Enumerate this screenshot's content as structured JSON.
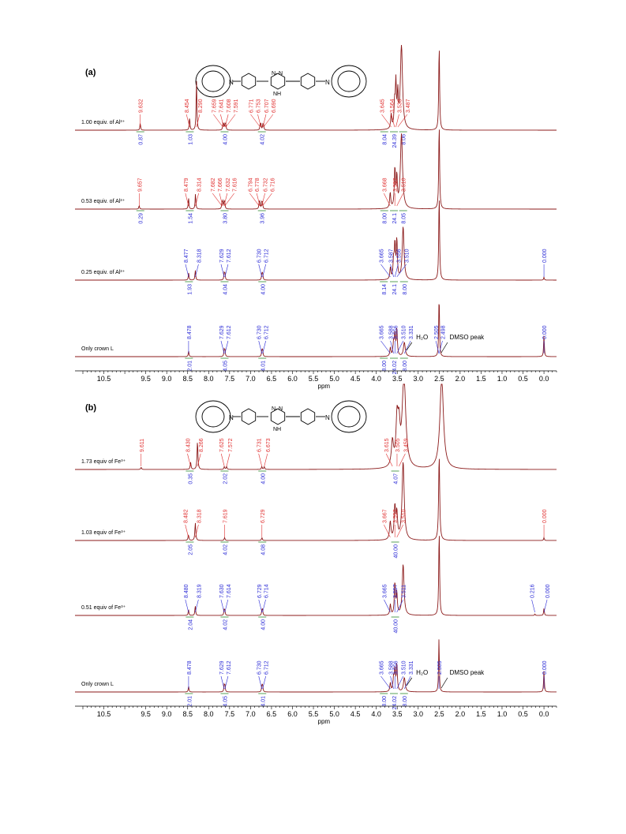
{
  "colors": {
    "spectrum": "#8B1A1A",
    "label_red": "#E03030",
    "label_blue": "#2B2BD6",
    "integral_green": "#2E8B2E",
    "axis": "#000000"
  },
  "annotations": {
    "h2o": "H₂O",
    "dmso": "DMSO peak"
  },
  "chart_data": [
    {
      "type": "line",
      "panel_label": "(a)",
      "xlabel": "ppm",
      "x_reversed": true,
      "xlim": [
        11.0,
        -0.3
      ],
      "xticks": [
        "10.5",
        "9.5",
        "9.0",
        "8.5",
        "8.0",
        "7.5",
        "7.0",
        "6.5",
        "6.0",
        "5.5",
        "5.0",
        "4.5",
        "4.0",
        "3.5",
        "3.0",
        "2.5",
        "2.0",
        "1.5",
        "1.0",
        "0.5",
        "0.0"
      ],
      "structure_labels": {
        "nitrogen": "N",
        "azo": "N–N",
        "nh": "NH"
      },
      "series": [
        {
          "name": "1.00 equiv. of Al³⁺",
          "peaks": [
            {
              "ppm": 9.632,
              "h": 0.1,
              "w": 0.01
            },
            {
              "ppm": 8.454,
              "h": 0.18,
              "w": 0.01
            },
            {
              "ppm": 8.29,
              "h": 0.72,
              "w": 0.01
            },
            {
              "ppm": 7.659,
              "h": 0.08,
              "w": 0.01
            },
            {
              "ppm": 7.641,
              "h": 0.07,
              "w": 0.01
            },
            {
              "ppm": 7.608,
              "h": 0.08,
              "w": 0.01
            },
            {
              "ppm": 7.591,
              "h": 0.07,
              "w": 0.01
            },
            {
              "ppm": 6.771,
              "h": 0.07,
              "w": 0.01
            },
            {
              "ppm": 6.753,
              "h": 0.08,
              "w": 0.01
            },
            {
              "ppm": 6.707,
              "h": 0.07,
              "w": 0.01
            },
            {
              "ppm": 6.69,
              "h": 0.07,
              "w": 0.01
            },
            {
              "ppm": 3.645,
              "h": 0.2,
              "w": 0.015
            },
            {
              "ppm": 3.564,
              "h": 0.32,
              "w": 0.015
            },
            {
              "ppm": 3.533,
              "h": 0.62,
              "w": 0.015
            },
            {
              "ppm": 3.487,
              "h": 0.45,
              "w": 0.015
            },
            {
              "ppm": 3.4,
              "h": 1.2,
              "w": 0.03
            },
            {
              "ppm": 2.5,
              "h": 1.2,
              "w": 0.012
            }
          ],
          "labels_red": [
            "9.632",
            "8.454",
            "8.290",
            "7.659",
            "7.641",
            "7.608",
            "7.591",
            "6.771",
            "6.753",
            "6.707",
            "6.690",
            "3.645",
            "3.564",
            "3.533",
            "3.487"
          ],
          "labels_blue": [],
          "integrals": [
            "0.87",
            "1.03",
            "4.00",
            "4.02",
            "8.04",
            "24.39",
            "8.06"
          ]
        },
        {
          "name": "0.53 equiv. of Al³⁺",
          "peaks": [
            {
              "ppm": 9.657,
              "h": 0.05,
              "w": 0.01
            },
            {
              "ppm": 8.479,
              "h": 0.16,
              "w": 0.01
            },
            {
              "ppm": 8.314,
              "h": 0.22,
              "w": 0.01
            },
            {
              "ppm": 7.682,
              "h": 0.08,
              "w": 0.01
            },
            {
              "ppm": 7.666,
              "h": 0.09,
              "w": 0.01
            },
            {
              "ppm": 7.632,
              "h": 0.09,
              "w": 0.01
            },
            {
              "ppm": 7.616,
              "h": 0.08,
              "w": 0.01
            },
            {
              "ppm": 6.794,
              "h": 0.08,
              "w": 0.01
            },
            {
              "ppm": 6.778,
              "h": 0.09,
              "w": 0.01
            },
            {
              "ppm": 6.732,
              "h": 0.09,
              "w": 0.01
            },
            {
              "ppm": 6.716,
              "h": 0.08,
              "w": 0.01
            },
            {
              "ppm": 3.668,
              "h": 0.22,
              "w": 0.015
            },
            {
              "ppm": 3.557,
              "h": 0.55,
              "w": 0.015
            },
            {
              "ppm": 3.51,
              "h": 0.42,
              "w": 0.015
            },
            {
              "ppm": 3.4,
              "h": 1.05,
              "w": 0.03
            },
            {
              "ppm": 2.5,
              "h": 1.2,
              "w": 0.012
            }
          ],
          "labels_red": [
            "9.657",
            "8.479",
            "8.314",
            "7.682",
            "7.666",
            "7.632",
            "7.616",
            "6.794",
            "6.778",
            "6.732",
            "6.716",
            "3.668",
            "3.557",
            "3.510"
          ],
          "labels_blue": [],
          "integrals": [
            "0.29",
            "1.54",
            "3.80",
            "3.96",
            "8.00",
            "24.1",
            "8.05"
          ]
        },
        {
          "name": "0.25 equiv. of Al³⁺",
          "peaks": [
            {
              "ppm": 8.477,
              "h": 0.1,
              "w": 0.01
            },
            {
              "ppm": 8.318,
              "h": 0.14,
              "w": 0.01
            },
            {
              "ppm": 7.629,
              "h": 0.09,
              "w": 0.01
            },
            {
              "ppm": 7.612,
              "h": 0.09,
              "w": 0.01
            },
            {
              "ppm": 6.73,
              "h": 0.09,
              "w": 0.01
            },
            {
              "ppm": 6.712,
              "h": 0.09,
              "w": 0.01
            },
            {
              "ppm": 3.665,
              "h": 0.16,
              "w": 0.015
            },
            {
              "ppm": 3.587,
              "h": 0.26,
              "w": 0.015
            },
            {
              "ppm": 3.556,
              "h": 0.48,
              "w": 0.015
            },
            {
              "ppm": 3.51,
              "h": 0.55,
              "w": 0.015
            },
            {
              "ppm": 3.36,
              "h": 0.75,
              "w": 0.025
            },
            {
              "ppm": 2.5,
              "h": 1.2,
              "w": 0.012
            },
            {
              "ppm": 0.0,
              "h": 0.04,
              "w": 0.01
            }
          ],
          "labels_red": [],
          "labels_blue": [
            "8.477",
            "8.318",
            "7.629",
            "7.612",
            "6.730",
            "6.712",
            "3.665",
            "3.587",
            "3.556",
            "3.510",
            "0.000"
          ],
          "integrals": [
            "1.93",
            "4.04",
            "4.00",
            "8.14",
            "24.1",
            "8.00"
          ]
        },
        {
          "name": "Only crown L",
          "peaks": [
            {
              "ppm": 8.478,
              "h": 0.08,
              "w": 0.01
            },
            {
              "ppm": 7.629,
              "h": 0.09,
              "w": 0.01
            },
            {
              "ppm": 7.612,
              "h": 0.09,
              "w": 0.01
            },
            {
              "ppm": 6.73,
              "h": 0.09,
              "w": 0.01
            },
            {
              "ppm": 6.712,
              "h": 0.09,
              "w": 0.01
            },
            {
              "ppm": 3.665,
              "h": 0.12,
              "w": 0.015
            },
            {
              "ppm": 3.588,
              "h": 0.18,
              "w": 0.015
            },
            {
              "ppm": 3.556,
              "h": 0.3,
              "w": 0.015
            },
            {
              "ppm": 3.51,
              "h": 0.38,
              "w": 0.015
            },
            {
              "ppm": 3.331,
              "h": 0.2,
              "w": 0.025
            },
            {
              "ppm": 2.505,
              "h": 0.48,
              "w": 0.01
            },
            {
              "ppm": 2.498,
              "h": 0.44,
              "w": 0.01
            },
            {
              "ppm": 0.0,
              "h": 0.3,
              "w": 0.01
            }
          ],
          "labels_red": [],
          "labels_blue": [
            "8.478",
            "7.629",
            "7.612",
            "6.730",
            "6.712",
            "3.665",
            "3.588",
            "3.556",
            "3.510",
            "3.331",
            "2.505",
            "2.498",
            "0.000"
          ],
          "integrals": [
            "2.01",
            "4.05",
            "4.01",
            "8.00",
            "24.02",
            "8.00"
          ]
        }
      ]
    },
    {
      "type": "line",
      "panel_label": "(b)",
      "xlabel": "ppm",
      "x_reversed": true,
      "xlim": [
        11.0,
        -0.3
      ],
      "xticks": [
        "10.5",
        "9.5",
        "9.0",
        "8.5",
        "8.0",
        "7.5",
        "7.0",
        "6.5",
        "6.0",
        "5.5",
        "5.0",
        "4.5",
        "4.0",
        "3.5",
        "3.0",
        "2.5",
        "2.0",
        "1.5",
        "1.0",
        "0.5",
        "0.0"
      ],
      "structure_labels": {
        "nitrogen": "N",
        "azo": "N–N",
        "nh": "NH"
      },
      "series": [
        {
          "name": "1.73 equiv of Fe³⁺",
          "peaks": [
            {
              "ppm": 9.611,
              "h": 0.03,
              "w": 0.012
            },
            {
              "ppm": 8.43,
              "h": 0.1,
              "w": 0.012
            },
            {
              "ppm": 8.266,
              "h": 0.4,
              "w": 0.012
            },
            {
              "ppm": 7.625,
              "h": 0.04,
              "w": 0.012
            },
            {
              "ppm": 7.572,
              "h": 0.04,
              "w": 0.012
            },
            {
              "ppm": 6.731,
              "h": 0.04,
              "w": 0.012
            },
            {
              "ppm": 6.673,
              "h": 0.04,
              "w": 0.012
            },
            {
              "ppm": 3.615,
              "h": 0.35,
              "w": 0.03
            },
            {
              "ppm": 3.505,
              "h": 0.62,
              "w": 0.03
            },
            {
              "ppm": 3.459,
              "h": 0.48,
              "w": 0.03
            },
            {
              "ppm": 3.34,
              "h": 1.3,
              "w": 0.05
            },
            {
              "ppm": 2.44,
              "h": 1.3,
              "w": 0.05
            }
          ],
          "labels_red": [
            "9.611",
            "8.430",
            "8.266",
            "7.625",
            "7.572",
            "6.731",
            "6.673",
            "3.615",
            "3.505",
            "3.459"
          ],
          "labels_blue": [],
          "integrals": [
            "0.35",
            "2.02",
            "4.00",
            "4.07"
          ]
        },
        {
          "name": "1.03 equiv of Fe³⁺",
          "peaks": [
            {
              "ppm": 8.482,
              "h": 0.08,
              "w": 0.012
            },
            {
              "ppm": 8.318,
              "h": 0.25,
              "w": 0.012
            },
            {
              "ppm": 7.619,
              "h": 0.04,
              "w": 0.012
            },
            {
              "ppm": 6.729,
              "h": 0.04,
              "w": 0.012
            },
            {
              "ppm": 3.667,
              "h": 0.25,
              "w": 0.02
            },
            {
              "ppm": 3.557,
              "h": 0.45,
              "w": 0.02
            },
            {
              "ppm": 3.51,
              "h": 0.35,
              "w": 0.02
            },
            {
              "ppm": 3.36,
              "h": 1.1,
              "w": 0.03
            },
            {
              "ppm": 2.5,
              "h": 1.2,
              "w": 0.015
            },
            {
              "ppm": 0.0,
              "h": 0.04,
              "w": 0.01
            }
          ],
          "labels_red": [
            "8.482",
            "8.318",
            "7.619",
            "6.729",
            "3.667",
            "3.557",
            "3.510",
            "0.000"
          ],
          "labels_blue": [],
          "integrals": [
            "2.05",
            "4.02",
            "4.08",
            "40.00"
          ]
        },
        {
          "name": "0.51 equiv of Fe³⁺",
          "peaks": [
            {
              "ppm": 8.48,
              "h": 0.08,
              "w": 0.01
            },
            {
              "ppm": 8.319,
              "h": 0.14,
              "w": 0.01
            },
            {
              "ppm": 7.63,
              "h": 0.07,
              "w": 0.01
            },
            {
              "ppm": 7.614,
              "h": 0.07,
              "w": 0.01
            },
            {
              "ppm": 6.729,
              "h": 0.07,
              "w": 0.01
            },
            {
              "ppm": 6.714,
              "h": 0.07,
              "w": 0.01
            },
            {
              "ppm": 3.665,
              "h": 0.15,
              "w": 0.015
            },
            {
              "ppm": 3.557,
              "h": 0.45,
              "w": 0.015
            },
            {
              "ppm": 3.511,
              "h": 0.3,
              "w": 0.015
            },
            {
              "ppm": 3.36,
              "h": 0.72,
              "w": 0.025
            },
            {
              "ppm": 2.5,
              "h": 1.2,
              "w": 0.012
            },
            {
              "ppm": 0.216,
              "h": 0.02,
              "w": 0.01
            },
            {
              "ppm": 0.0,
              "h": 0.1,
              "w": 0.01
            }
          ],
          "labels_red": [],
          "labels_blue": [
            "8.480",
            "8.319",
            "7.630",
            "7.614",
            "6.729",
            "6.714",
            "3.665",
            "3.557",
            "3.511",
            "0.216",
            "0.000"
          ],
          "integrals": [
            "2.04",
            "4.02",
            "4.00",
            "40.00"
          ]
        },
        {
          "name": "Only crown L",
          "peaks": [
            {
              "ppm": 8.478,
              "h": 0.08,
              "w": 0.01
            },
            {
              "ppm": 7.629,
              "h": 0.09,
              "w": 0.01
            },
            {
              "ppm": 7.612,
              "h": 0.09,
              "w": 0.01
            },
            {
              "ppm": 6.73,
              "h": 0.09,
              "w": 0.01
            },
            {
              "ppm": 6.712,
              "h": 0.09,
              "w": 0.01
            },
            {
              "ppm": 3.665,
              "h": 0.12,
              "w": 0.015
            },
            {
              "ppm": 3.588,
              "h": 0.18,
              "w": 0.015
            },
            {
              "ppm": 3.556,
              "h": 0.3,
              "w": 0.015
            },
            {
              "ppm": 3.51,
              "h": 0.38,
              "w": 0.015
            },
            {
              "ppm": 3.331,
              "h": 0.2,
              "w": 0.025
            },
            {
              "ppm": 2.505,
              "h": 0.75,
              "w": 0.01
            },
            {
              "ppm": 0.0,
              "h": 0.3,
              "w": 0.01
            }
          ],
          "labels_red": [],
          "labels_blue": [
            "8.478",
            "7.629",
            "7.612",
            "6.730",
            "6.712",
            "3.665",
            "3.588",
            "3.556",
            "3.510",
            "3.331",
            "2.505",
            "0.000"
          ],
          "integrals": [
            "2.01",
            "4.05",
            "4.01",
            "8.00",
            "24.02",
            "8.00"
          ]
        }
      ]
    }
  ]
}
